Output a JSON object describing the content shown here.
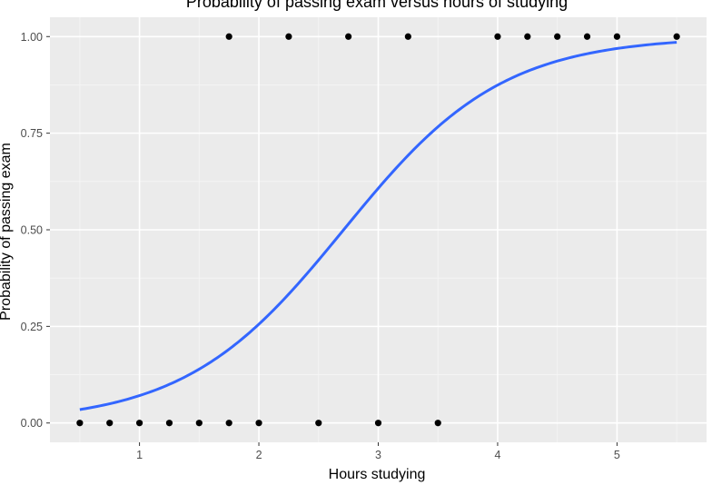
{
  "chart_data": {
    "type": "scatter",
    "title": "Probability of passing exam versus hours of studying",
    "xlabel": "Hours studying",
    "ylabel": "Probability of passing exam",
    "xlim": [
      0.25,
      5.75
    ],
    "ylim": [
      -0.05,
      1.05
    ],
    "x_ticks": [
      1,
      2,
      3,
      4,
      5
    ],
    "y_ticks": [
      0.0,
      0.25,
      0.5,
      0.75,
      1.0
    ],
    "x_tick_labels": [
      "1",
      "2",
      "3",
      "4",
      "5"
    ],
    "y_tick_labels": [
      "0.00",
      "0.25",
      "0.50",
      "0.75",
      "1.00"
    ],
    "grid": true,
    "points": [
      {
        "x": 0.5,
        "y": 0
      },
      {
        "x": 0.75,
        "y": 0
      },
      {
        "x": 1.0,
        "y": 0
      },
      {
        "x": 1.25,
        "y": 0
      },
      {
        "x": 1.5,
        "y": 0
      },
      {
        "x": 1.75,
        "y": 0
      },
      {
        "x": 1.75,
        "y": 1
      },
      {
        "x": 2.0,
        "y": 0
      },
      {
        "x": 2.25,
        "y": 1
      },
      {
        "x": 2.5,
        "y": 0
      },
      {
        "x": 2.75,
        "y": 1
      },
      {
        "x": 3.0,
        "y": 0
      },
      {
        "x": 3.25,
        "y": 1
      },
      {
        "x": 3.5,
        "y": 0
      },
      {
        "x": 4.0,
        "y": 1
      },
      {
        "x": 4.25,
        "y": 1
      },
      {
        "x": 4.5,
        "y": 1
      },
      {
        "x": 4.75,
        "y": 1
      },
      {
        "x": 5.0,
        "y": 1
      },
      {
        "x": 5.5,
        "y": 1
      }
    ],
    "fit_curve": {
      "type": "logistic",
      "intercept": -4.0777,
      "slope": 1.5046,
      "x_range": [
        0.5,
        5.5
      ]
    },
    "colors": {
      "panel": "#ebebeb",
      "grid_major": "#ffffff",
      "curve": "#3366ff",
      "points": "#000000",
      "tick_text": "#4d4d4d",
      "tick_mark": "#333333"
    }
  }
}
